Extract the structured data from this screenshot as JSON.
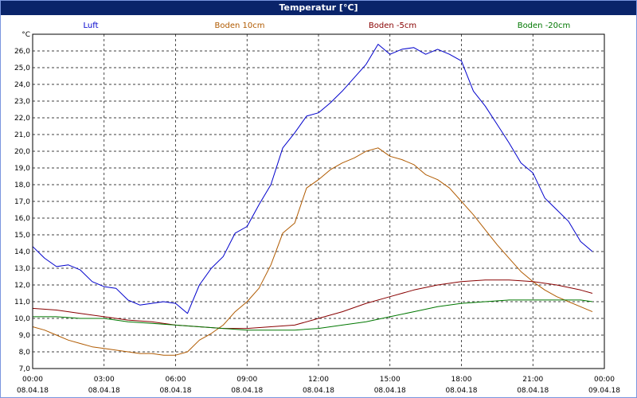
{
  "window": {
    "title": "Temperatur [°C]"
  },
  "colors": {
    "Luft": "#0000cc",
    "Boden 10cm": "#b05a00",
    "Boden -5cm": "#880000",
    "Boden -20cm": "#007700"
  },
  "chart_data": {
    "type": "line",
    "title": "Temperatur [°C]",
    "y_unit": "°C",
    "ylim": [
      7.0,
      27.0
    ],
    "yticks": [
      "7,0",
      "8,0",
      "9,0",
      "10,0",
      "11,0",
      "12,0",
      "13,0",
      "14,0",
      "15,0",
      "16,0",
      "17,0",
      "18,0",
      "19,0",
      "20,0",
      "21,0",
      "22,0",
      "23,0",
      "24,0",
      "25,0",
      "26,0"
    ],
    "xlim": [
      0,
      24
    ],
    "xticks": [
      {
        "time": "00:00",
        "date": "08.04.18"
      },
      {
        "time": "03:00",
        "date": "08.04.18"
      },
      {
        "time": "06:00",
        "date": "08.04.18"
      },
      {
        "time": "09:00",
        "date": "08.04.18"
      },
      {
        "time": "12:00",
        "date": "08.04.18"
      },
      {
        "time": "15:00",
        "date": "08.04.18"
      },
      {
        "time": "18:00",
        "date": "08.04.18"
      },
      {
        "time": "21:00",
        "date": "08.04.18"
      },
      {
        "time": "00:00",
        "date": "09.04.18"
      }
    ],
    "grid": true,
    "legend_position": "top",
    "series": [
      {
        "name": "Luft",
        "x": [
          0,
          0.5,
          1,
          1.5,
          2,
          2.5,
          3,
          3.5,
          4,
          4.5,
          5,
          5.5,
          6,
          6.5,
          7,
          7.5,
          8,
          8.5,
          9,
          9.5,
          10,
          10.5,
          11,
          11.5,
          12,
          12.5,
          13,
          13.5,
          14,
          14.5,
          15,
          15.5,
          16,
          16.5,
          17,
          17.5,
          18,
          18.5,
          19,
          19.5,
          20,
          20.5,
          21,
          21.5,
          22,
          22.5,
          23,
          23.5
        ],
        "y": [
          14.3,
          13.6,
          13.1,
          13.2,
          12.9,
          12.2,
          11.9,
          11.8,
          11.1,
          10.8,
          10.9,
          11.0,
          10.9,
          10.3,
          12.0,
          13.0,
          13.7,
          15.1,
          15.5,
          16.8,
          18.0,
          20.2,
          21.1,
          22.1,
          22.3,
          22.9,
          23.6,
          24.4,
          25.2,
          26.4,
          25.8,
          26.1,
          26.2,
          25.8,
          26.1,
          25.8,
          25.4,
          23.6,
          22.7,
          21.6,
          20.5,
          19.3,
          18.7,
          17.2,
          16.5,
          15.8,
          14.6,
          14.0
        ]
      },
      {
        "name": "Boden 10cm",
        "x": [
          0,
          0.5,
          1,
          1.5,
          2,
          2.5,
          3,
          3.5,
          4,
          4.5,
          5,
          5.5,
          6,
          6.5,
          7,
          7.5,
          8,
          8.5,
          9,
          9.5,
          10,
          10.5,
          11,
          11.5,
          12,
          12.5,
          13,
          13.5,
          14,
          14.5,
          15,
          15.5,
          16,
          16.5,
          17,
          17.5,
          18,
          18.5,
          19,
          19.5,
          20,
          20.5,
          21,
          21.5,
          22,
          22.5,
          23,
          23.5
        ],
        "y": [
          9.5,
          9.3,
          9.0,
          8.7,
          8.5,
          8.3,
          8.2,
          8.1,
          8.0,
          7.9,
          7.9,
          7.8,
          7.8,
          8.0,
          8.7,
          9.1,
          9.6,
          10.4,
          11.0,
          11.8,
          13.2,
          15.1,
          15.7,
          17.8,
          18.3,
          18.9,
          19.3,
          19.6,
          20.0,
          20.2,
          19.7,
          19.5,
          19.2,
          18.6,
          18.3,
          17.8,
          17.0,
          16.2,
          15.3,
          14.4,
          13.6,
          12.8,
          12.2,
          11.7,
          11.3,
          11.0,
          10.7,
          10.4
        ]
      },
      {
        "name": "Boden -5cm",
        "x": [
          0,
          1,
          2,
          3,
          4,
          5,
          6,
          7,
          8,
          9,
          10,
          11,
          12,
          13,
          14,
          15,
          16,
          17,
          18,
          19,
          20,
          21,
          22,
          23,
          23.5
        ],
        "y": [
          10.6,
          10.5,
          10.3,
          10.1,
          9.9,
          9.8,
          9.6,
          9.5,
          9.4,
          9.4,
          9.5,
          9.6,
          10.0,
          10.4,
          10.9,
          11.3,
          11.7,
          12.0,
          12.2,
          12.3,
          12.3,
          12.2,
          12.0,
          11.7,
          11.5
        ]
      },
      {
        "name": "Boden -20cm",
        "x": [
          0,
          1,
          2,
          3,
          4,
          5,
          6,
          7,
          8,
          9,
          10,
          11,
          12,
          13,
          14,
          15,
          16,
          17,
          18,
          19,
          20,
          21,
          22,
          23,
          23.5
        ],
        "y": [
          10.1,
          10.1,
          10.0,
          10.0,
          9.8,
          9.7,
          9.6,
          9.5,
          9.4,
          9.3,
          9.3,
          9.3,
          9.4,
          9.6,
          9.8,
          10.1,
          10.4,
          10.7,
          10.9,
          11.0,
          11.1,
          11.1,
          11.1,
          11.1,
          11.0
        ]
      }
    ]
  }
}
